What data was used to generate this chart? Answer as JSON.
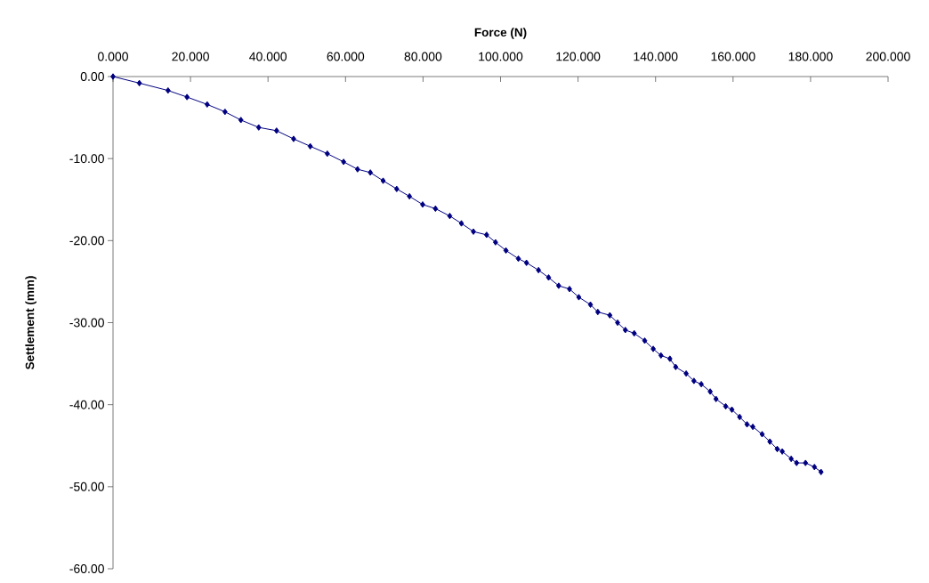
{
  "chart_data": {
    "type": "line",
    "xlabel": "Force (N)",
    "ylabel": "Settlement (mm)",
    "xlim": [
      0,
      200
    ],
    "ylim": [
      -60,
      0
    ],
    "xticks": [
      {
        "value": 0,
        "label": "0.000"
      },
      {
        "value": 20,
        "label": "20.000"
      },
      {
        "value": 40,
        "label": "40.000"
      },
      {
        "value": 60,
        "label": "60.000"
      },
      {
        "value": 80,
        "label": "80.000"
      },
      {
        "value": 100,
        "label": "100.000"
      },
      {
        "value": 120,
        "label": "120.000"
      },
      {
        "value": 140,
        "label": "140.000"
      },
      {
        "value": 160,
        "label": "160.000"
      },
      {
        "value": 180,
        "label": "180.000"
      },
      {
        "value": 200,
        "label": "200.000"
      }
    ],
    "yticks": [
      {
        "value": 0,
        "label": "0.00"
      },
      {
        "value": -10,
        "label": "-10.00"
      },
      {
        "value": -20,
        "label": "-20.00"
      },
      {
        "value": -30,
        "label": "-30.00"
      },
      {
        "value": -40,
        "label": "-40.00"
      },
      {
        "value": -50,
        "label": "-50.00"
      },
      {
        "value": -60,
        "label": "-60.00"
      }
    ],
    "grid": false,
    "marker": "diamond",
    "line_style": "solid",
    "x": [
      0,
      6.8,
      14.2,
      19.1,
      24.3,
      28.9,
      33.0,
      37.6,
      42.2,
      46.6,
      50.9,
      55.3,
      59.5,
      63.1,
      66.4,
      69.7,
      73.2,
      76.5,
      79.9,
      83.2,
      86.9,
      89.9,
      93.0,
      96.4,
      98.7,
      101.4,
      104.6,
      106.7,
      109.8,
      112.4,
      115.0,
      117.8,
      120.2,
      123.2,
      125.1,
      128.2,
      130.2,
      132.2,
      134.5,
      137.2,
      139.4,
      141.4,
      143.7,
      145.2,
      147.9,
      149.9,
      151.8,
      154.1,
      155.6,
      158.1,
      159.7,
      161.7,
      163.6,
      165.1,
      167.5,
      169.5,
      171.4,
      172.7,
      175.0,
      176.4,
      178.7,
      181.0,
      182.7
    ],
    "series": [
      {
        "color": "#000080",
        "values": [
          0,
          -0.8,
          -1.7,
          -2.5,
          -3.4,
          -4.3,
          -5.3,
          -6.2,
          -6.6,
          -7.6,
          -8.5,
          -9.4,
          -10.4,
          -11.3,
          -11.7,
          -12.7,
          -13.7,
          -14.6,
          -15.6,
          -16.1,
          -17.0,
          -17.9,
          -18.9,
          -19.3,
          -20.2,
          -21.2,
          -22.2,
          -22.7,
          -23.6,
          -24.5,
          -25.5,
          -25.9,
          -26.9,
          -27.8,
          -28.7,
          -29.1,
          -30.0,
          -30.9,
          -31.3,
          -32.2,
          -33.2,
          -34.0,
          -34.4,
          -35.4,
          -36.2,
          -37.1,
          -37.5,
          -38.4,
          -39.3,
          -40.2,
          -40.6,
          -41.5,
          -42.4,
          -42.7,
          -43.6,
          -44.5,
          -45.4,
          -45.7,
          -46.6,
          -47.1,
          -47.1,
          -47.6,
          -48.2
        ]
      }
    ]
  }
}
